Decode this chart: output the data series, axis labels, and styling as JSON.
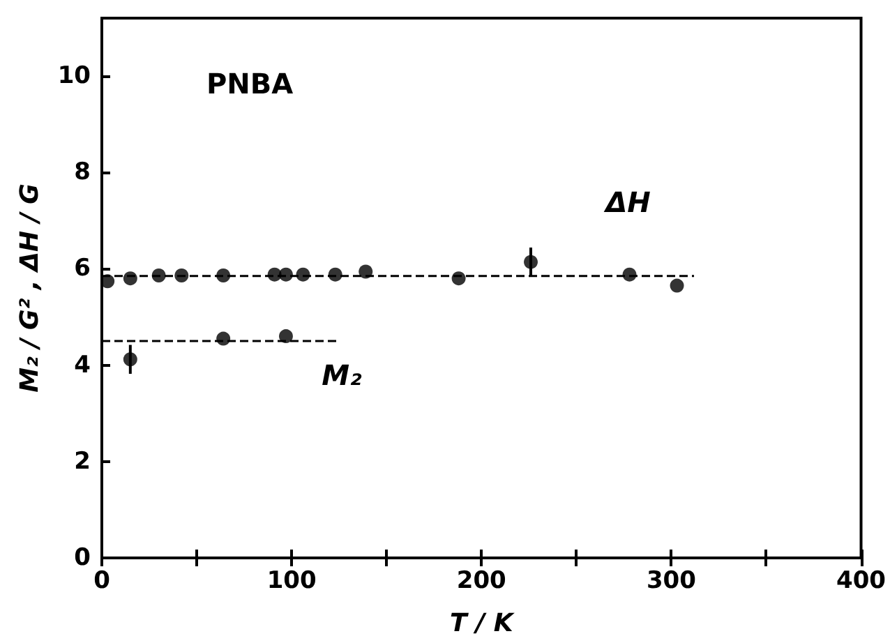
{
  "chart_data": {
    "type": "scatter",
    "xlabel": "T / K",
    "ylabel": "M₂ / G² , ΔH / G",
    "annotations": [
      "PNBA"
    ],
    "xlim": [
      0,
      400
    ],
    "ylim": [
      0,
      11.2
    ],
    "xticks": [
      0,
      {
        "value": 50,
        "label": null
      },
      100,
      {
        "value": 150,
        "label": null
      },
      200,
      {
        "value": 250,
        "label": null
      },
      300,
      {
        "value": 350,
        "label": null
      },
      400
    ],
    "yticks": [
      0,
      2,
      4,
      6,
      8,
      10
    ],
    "grid": false,
    "legend": false,
    "marker": "circle",
    "series": [
      {
        "name": "ΔH",
        "color": "#000000",
        "x": [
          3,
          15,
          30,
          42,
          64,
          91,
          97,
          106,
          123,
          139,
          188,
          226,
          278,
          303
        ],
        "values": [
          5.74,
          5.8,
          5.86,
          5.86,
          5.86,
          5.88,
          5.88,
          5.88,
          5.88,
          5.94,
          5.8,
          6.14,
          5.88,
          5.65
        ],
        "errors": [
          null,
          null,
          null,
          null,
          null,
          null,
          null,
          null,
          null,
          null,
          null,
          0.3,
          null,
          null
        ]
      },
      {
        "name": "M₂",
        "color": "#000000",
        "x": [
          15,
          64,
          97
        ],
        "values": [
          4.12,
          4.55,
          4.6
        ],
        "errors": [
          0.3,
          null,
          null
        ]
      },
      {
        "type": "line",
        "color": "#000000",
        "marker": "none",
        "line_style": "dashed",
        "x": [
          0,
          312
        ],
        "values": [
          5.85,
          5.85
        ]
      },
      {
        "type": "line",
        "color": "#000000",
        "marker": "none",
        "line_style": "dashed",
        "x": [
          0,
          125
        ],
        "values": [
          4.5,
          4.5
        ]
      }
    ]
  }
}
